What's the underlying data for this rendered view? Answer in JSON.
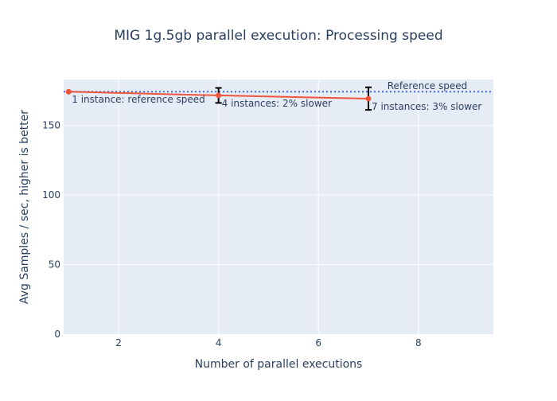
{
  "chart_data": {
    "type": "line",
    "title": "MIG 1g.5gb parallel execution: Processing speed",
    "xlabel": "Number of parallel executions",
    "ylabel": "Avg Samples / sec, higher is better",
    "xlim": [
      0.9,
      9.5
    ],
    "ylim": [
      0,
      183
    ],
    "xticks": [
      2,
      4,
      6,
      8
    ],
    "yticks": [
      0,
      50,
      100,
      150
    ],
    "grid": true,
    "series": [
      {
        "x": [
          1,
          4,
          7
        ],
        "y": [
          174.3,
          171.6,
          169.3
        ],
        "error": [
          0,
          5.4,
          8.1
        ],
        "color": "#ef553b"
      }
    ],
    "annotations": [
      {
        "x": 1,
        "y": 174.3,
        "text": "1 instance: reference speed"
      },
      {
        "x": 4,
        "y": 171.6,
        "text": "4 instances: 2% slower"
      },
      {
        "x": 7,
        "y": 169.3,
        "text": "7 instances: 3% slower"
      }
    ],
    "reference_line": {
      "y": 174.3,
      "label": "Reference speed",
      "color": "#4169e1",
      "style": "dotted"
    },
    "colors": {
      "plot_bg": "#e5ecf6",
      "grid": "#ffffff",
      "text": "#2a3f5f"
    }
  }
}
